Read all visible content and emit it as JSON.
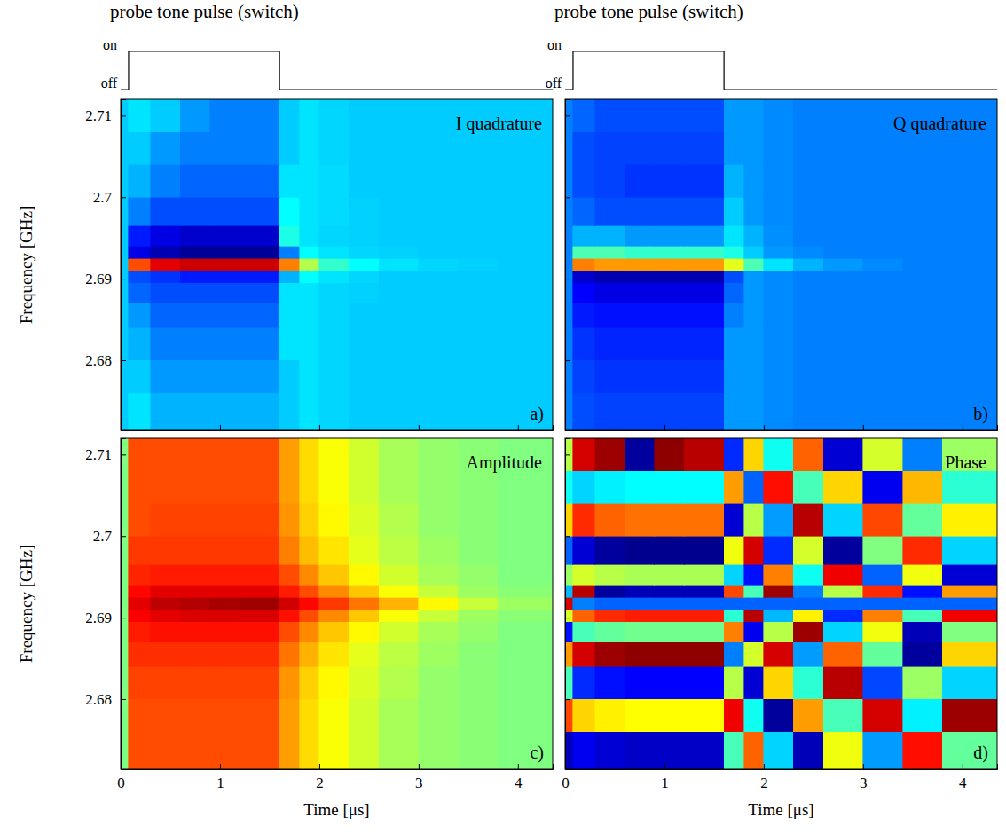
{
  "chart_data": [
    {
      "type": "heatmap",
      "title": "I quadrature",
      "letter": "a)",
      "ylabel": "Frequency [GHz]",
      "pulse": {
        "label": "probe tone pulse (switch)",
        "levels": [
          "on",
          "off"
        ],
        "start": 0.08,
        "end": 1.6
      },
      "xlim": [
        0,
        4.35
      ],
      "ylim": [
        2.6714,
        2.712
      ],
      "xticks": [
        0,
        1,
        2,
        3,
        4
      ],
      "yticks": [
        2.68,
        2.69,
        2.7,
        2.71
      ],
      "tick_labels": "y",
      "zlim": [
        -1,
        1
      ],
      "x_edges": [
        0,
        0.08,
        0.3,
        0.6,
        0.9,
        1.2,
        1.6,
        1.8,
        2.0,
        2.3,
        2.6,
        3.0,
        3.4,
        3.8,
        4.35
      ],
      "y_edges": [
        2.6714,
        2.676,
        2.68,
        2.684,
        2.687,
        2.6895,
        2.691,
        2.6925,
        2.694,
        2.6965,
        2.7,
        2.704,
        2.708,
        2.712
      ],
      "z": [
        [
          -0.35,
          -0.3,
          -0.4,
          -0.4,
          -0.4,
          -0.4,
          -0.35,
          -0.3,
          -0.33,
          -0.35,
          -0.35,
          -0.35,
          -0.35,
          -0.35
        ],
        [
          -0.35,
          -0.35,
          -0.45,
          -0.45,
          -0.45,
          -0.45,
          -0.35,
          -0.3,
          -0.33,
          -0.35,
          -0.35,
          -0.35,
          -0.35,
          -0.35
        ],
        [
          -0.35,
          -0.4,
          -0.5,
          -0.5,
          -0.5,
          -0.5,
          -0.3,
          -0.3,
          -0.33,
          -0.35,
          -0.35,
          -0.35,
          -0.35,
          -0.35
        ],
        [
          -0.35,
          -0.45,
          -0.55,
          -0.55,
          -0.55,
          -0.55,
          -0.3,
          -0.3,
          -0.33,
          -0.35,
          -0.35,
          -0.35,
          -0.35,
          -0.35
        ],
        [
          -0.35,
          -0.55,
          -0.6,
          -0.6,
          -0.6,
          -0.6,
          -0.3,
          -0.3,
          -0.33,
          -0.34,
          -0.35,
          -0.35,
          -0.35,
          -0.35
        ],
        [
          -0.35,
          -0.6,
          -0.65,
          -0.7,
          -0.7,
          -0.7,
          -0.4,
          -0.25,
          -0.3,
          -0.33,
          -0.35,
          -0.35,
          -0.35,
          -0.35
        ],
        [
          -0.35,
          0.6,
          0.8,
          0.85,
          0.85,
          0.85,
          0.5,
          0.1,
          -0.15,
          -0.25,
          -0.3,
          -0.33,
          -0.34,
          -0.35
        ],
        [
          -0.35,
          -0.8,
          -0.9,
          -0.95,
          -0.95,
          -0.95,
          -0.5,
          -0.25,
          -0.3,
          -0.33,
          -0.34,
          -0.35,
          -0.35,
          -0.35
        ],
        [
          -0.35,
          -0.7,
          -0.8,
          -0.85,
          -0.85,
          -0.85,
          -0.2,
          -0.3,
          -0.33,
          -0.34,
          -0.35,
          -0.35,
          -0.35,
          -0.35
        ],
        [
          -0.35,
          -0.5,
          -0.6,
          -0.6,
          -0.6,
          -0.6,
          -0.25,
          -0.3,
          -0.32,
          -0.34,
          -0.35,
          -0.35,
          -0.35,
          -0.35
        ],
        [
          -0.35,
          -0.4,
          -0.5,
          -0.55,
          -0.55,
          -0.55,
          -0.3,
          -0.3,
          -0.32,
          -0.35,
          -0.35,
          -0.35,
          -0.35,
          -0.35
        ],
        [
          -0.35,
          -0.35,
          -0.45,
          -0.5,
          -0.5,
          -0.5,
          -0.35,
          -0.3,
          -0.33,
          -0.35,
          -0.35,
          -0.35,
          -0.35,
          -0.35
        ],
        [
          -0.35,
          -0.3,
          -0.35,
          -0.45,
          -0.5,
          -0.5,
          -0.35,
          -0.3,
          -0.33,
          -0.35,
          -0.35,
          -0.35,
          -0.35,
          -0.35
        ]
      ]
    },
    {
      "type": "heatmap",
      "title": "Q quadrature",
      "letter": "b)",
      "pulse": {
        "label": "probe tone pulse (switch)",
        "levels": [
          "on",
          "off"
        ],
        "start": 0.08,
        "end": 1.6
      },
      "xlim": [
        0,
        4.35
      ],
      "ylim": [
        2.6714,
        2.712
      ],
      "xticks": [
        0,
        1,
        2,
        3,
        4
      ],
      "yticks": [
        2.68,
        2.69,
        2.7,
        2.71
      ],
      "tick_labels": false,
      "zlim": [
        -1,
        1
      ],
      "x_edges": [
        0,
        0.08,
        0.3,
        0.6,
        0.9,
        1.2,
        1.6,
        1.8,
        2.0,
        2.3,
        2.6,
        3.0,
        3.4,
        3.8,
        4.35
      ],
      "y_edges": [
        2.6714,
        2.676,
        2.68,
        2.684,
        2.687,
        2.6895,
        2.691,
        2.6925,
        2.694,
        2.6965,
        2.7,
        2.704,
        2.708,
        2.712
      ],
      "z": [
        [
          -0.5,
          -0.6,
          -0.62,
          -0.62,
          -0.62,
          -0.62,
          -0.45,
          -0.45,
          -0.48,
          -0.5,
          -0.5,
          -0.5,
          -0.5,
          -0.5
        ],
        [
          -0.5,
          -0.62,
          -0.65,
          -0.65,
          -0.65,
          -0.65,
          -0.45,
          -0.45,
          -0.48,
          -0.5,
          -0.5,
          -0.5,
          -0.5,
          -0.5
        ],
        [
          -0.5,
          -0.65,
          -0.68,
          -0.68,
          -0.68,
          -0.68,
          -0.45,
          -0.45,
          -0.48,
          -0.5,
          -0.5,
          -0.5,
          -0.5,
          -0.5
        ],
        [
          -0.5,
          -0.7,
          -0.72,
          -0.72,
          -0.72,
          -0.72,
          -0.5,
          -0.45,
          -0.48,
          -0.5,
          -0.5,
          -0.5,
          -0.5,
          -0.5
        ],
        [
          -0.5,
          -0.75,
          -0.8,
          -0.8,
          -0.8,
          -0.8,
          -0.55,
          -0.45,
          -0.48,
          -0.5,
          -0.5,
          -0.5,
          -0.5,
          -0.5
        ],
        [
          -0.5,
          -0.85,
          -0.9,
          -0.9,
          -0.9,
          -0.9,
          -0.6,
          -0.45,
          -0.48,
          -0.5,
          -0.5,
          -0.5,
          -0.5,
          -0.5
        ],
        [
          -0.5,
          0.5,
          0.45,
          0.45,
          0.45,
          0.45,
          0.2,
          -0.1,
          -0.3,
          -0.4,
          -0.45,
          -0.48,
          -0.5,
          -0.5
        ],
        [
          -0.5,
          -0.1,
          -0.1,
          -0.15,
          -0.15,
          -0.15,
          -0.2,
          -0.35,
          -0.45,
          -0.48,
          -0.5,
          -0.5,
          -0.5,
          -0.5
        ],
        [
          -0.5,
          -0.4,
          -0.4,
          -0.45,
          -0.45,
          -0.45,
          -0.3,
          -0.4,
          -0.47,
          -0.5,
          -0.5,
          -0.5,
          -0.5,
          -0.5
        ],
        [
          -0.5,
          -0.55,
          -0.6,
          -0.6,
          -0.6,
          -0.6,
          -0.35,
          -0.45,
          -0.48,
          -0.5,
          -0.5,
          -0.5,
          -0.5,
          -0.5
        ],
        [
          -0.5,
          -0.6,
          -0.62,
          -0.65,
          -0.65,
          -0.65,
          -0.4,
          -0.45,
          -0.48,
          -0.5,
          -0.5,
          -0.5,
          -0.5,
          -0.5
        ],
        [
          -0.5,
          -0.6,
          -0.62,
          -0.62,
          -0.62,
          -0.62,
          -0.45,
          -0.45,
          -0.48,
          -0.5,
          -0.5,
          -0.5,
          -0.5,
          -0.5
        ],
        [
          -0.5,
          -0.55,
          -0.6,
          -0.6,
          -0.6,
          -0.6,
          -0.45,
          -0.45,
          -0.48,
          -0.5,
          -0.5,
          -0.5,
          -0.5,
          -0.5
        ]
      ]
    },
    {
      "type": "heatmap",
      "title": "Amplitude",
      "letter": "c)",
      "xlabel": "Time [μs]",
      "ylabel": "Frequency [GHz]",
      "xlim": [
        0,
        4.35
      ],
      "ylim": [
        2.6714,
        2.712
      ],
      "xticks": [
        0,
        1,
        2,
        3,
        4
      ],
      "yticks": [
        2.68,
        2.69,
        2.7,
        2.71
      ],
      "tick_labels": true,
      "zlim": [
        0,
        1
      ],
      "x_edges": [
        0,
        0.08,
        0.3,
        0.6,
        0.9,
        1.2,
        1.6,
        1.8,
        2.0,
        2.3,
        2.6,
        3.0,
        3.4,
        3.8,
        4.35
      ],
      "y_edges": [
        2.6714,
        2.676,
        2.68,
        2.684,
        2.687,
        2.6895,
        2.691,
        2.6925,
        2.694,
        2.6965,
        2.7,
        2.704,
        2.708,
        2.712
      ],
      "z": [
        [
          0.5,
          0.8,
          0.8,
          0.8,
          0.8,
          0.8,
          0.72,
          0.66,
          0.62,
          0.58,
          0.54,
          0.52,
          0.51,
          0.5
        ],
        [
          0.5,
          0.8,
          0.8,
          0.8,
          0.8,
          0.8,
          0.72,
          0.66,
          0.62,
          0.58,
          0.54,
          0.52,
          0.51,
          0.5
        ],
        [
          0.5,
          0.81,
          0.81,
          0.81,
          0.81,
          0.81,
          0.73,
          0.67,
          0.63,
          0.59,
          0.55,
          0.52,
          0.51,
          0.5
        ],
        [
          0.5,
          0.83,
          0.83,
          0.83,
          0.83,
          0.83,
          0.76,
          0.7,
          0.65,
          0.6,
          0.56,
          0.53,
          0.51,
          0.5
        ],
        [
          0.5,
          0.85,
          0.86,
          0.86,
          0.86,
          0.86,
          0.8,
          0.74,
          0.68,
          0.63,
          0.58,
          0.54,
          0.52,
          0.5
        ],
        [
          0.5,
          0.88,
          0.9,
          0.91,
          0.91,
          0.91,
          0.86,
          0.8,
          0.74,
          0.68,
          0.62,
          0.57,
          0.53,
          0.51
        ],
        [
          0.5,
          0.9,
          0.94,
          0.95,
          0.96,
          0.97,
          0.92,
          0.87,
          0.82,
          0.76,
          0.7,
          0.63,
          0.57,
          0.53
        ],
        [
          0.5,
          0.87,
          0.9,
          0.9,
          0.9,
          0.9,
          0.85,
          0.8,
          0.74,
          0.68,
          0.62,
          0.57,
          0.53,
          0.51
        ],
        [
          0.5,
          0.84,
          0.85,
          0.85,
          0.85,
          0.85,
          0.8,
          0.74,
          0.68,
          0.63,
          0.58,
          0.54,
          0.52,
          0.5
        ],
        [
          0.5,
          0.82,
          0.82,
          0.82,
          0.82,
          0.82,
          0.75,
          0.69,
          0.65,
          0.6,
          0.56,
          0.53,
          0.51,
          0.5
        ],
        [
          0.5,
          0.8,
          0.81,
          0.81,
          0.81,
          0.81,
          0.73,
          0.67,
          0.63,
          0.59,
          0.55,
          0.52,
          0.51,
          0.5
        ],
        [
          0.5,
          0.8,
          0.8,
          0.8,
          0.8,
          0.8,
          0.72,
          0.66,
          0.62,
          0.58,
          0.54,
          0.52,
          0.51,
          0.5
        ],
        [
          0.5,
          0.8,
          0.8,
          0.8,
          0.8,
          0.8,
          0.72,
          0.66,
          0.62,
          0.58,
          0.54,
          0.52,
          0.51,
          0.5
        ]
      ]
    },
    {
      "type": "heatmap",
      "title": "Phase",
      "letter": "d)",
      "xlabel": "Time [μs]",
      "xlim": [
        0,
        4.35
      ],
      "ylim": [
        2.6714,
        2.712
      ],
      "xticks": [
        0,
        1,
        2,
        3,
        4
      ],
      "yticks": [
        2.68,
        2.69,
        2.7,
        2.71
      ],
      "tick_labels": "x",
      "zlim": [
        -180,
        180
      ],
      "x_edges": [
        0,
        0.08,
        0.3,
        0.6,
        0.9,
        1.2,
        1.6,
        1.8,
        2.0,
        2.3,
        2.6,
        3.0,
        3.4,
        3.8,
        4.35
      ],
      "y_edges": [
        2.6714,
        2.676,
        2.68,
        2.684,
        2.687,
        2.6895,
        2.691,
        2.6925,
        2.694,
        2.6965,
        2.7,
        2.704,
        2.708,
        2.712
      ],
      "z": [
        [
          -160,
          -140,
          -150,
          -155,
          -155,
          -155,
          -20,
          100,
          -60,
          -160,
          40,
          -80,
          130,
          -10
        ],
        [
          110,
          60,
          50,
          45,
          45,
          45,
          140,
          -40,
          -170,
          80,
          -20,
          150,
          -50,
          170
        ],
        [
          -20,
          -120,
          -130,
          -135,
          -135,
          -135,
          20,
          -150,
          60,
          -30,
          160,
          -110,
          10,
          -60
        ],
        [
          80,
          150,
          170,
          175,
          175,
          175,
          -90,
          30,
          150,
          -80,
          100,
          -10,
          -170,
          60
        ],
        [
          -130,
          -20,
          -10,
          -5,
          -5,
          -5,
          90,
          -140,
          20,
          170,
          -60,
          40,
          -160,
          0
        ],
        [
          30,
          100,
          120,
          125,
          125,
          125,
          -30,
          160,
          -70,
          50,
          -120,
          90,
          -20,
          140
        ],
        [
          150,
          -90,
          -100,
          -100,
          -100,
          -100,
          -100,
          -100,
          -100,
          -100,
          -100,
          -100,
          -100,
          -100
        ],
        [
          -70,
          160,
          -170,
          -160,
          -160,
          -160,
          110,
          -20,
          170,
          -90,
          20,
          120,
          -130,
          80
        ],
        [
          10,
          30,
          20,
          15,
          15,
          15,
          -60,
          -130,
          90,
          -40,
          140,
          -100,
          40,
          -150
        ],
        [
          -100,
          -150,
          -170,
          -175,
          -175,
          -175,
          40,
          150,
          -120,
          30,
          -170,
          0,
          120,
          -60
        ],
        [
          60,
          120,
          100,
          95,
          95,
          95,
          -150,
          20,
          -80,
          160,
          -60,
          110,
          -10,
          50
        ],
        [
          -40,
          -60,
          -50,
          -45,
          -45,
          -45,
          80,
          -100,
          130,
          -20,
          60,
          -140,
          70,
          -30
        ],
        [
          20,
          150,
          170,
          -170,
          175,
          160,
          -120,
          60,
          -40,
          100,
          -150,
          30,
          -90,
          10
        ]
      ]
    }
  ]
}
